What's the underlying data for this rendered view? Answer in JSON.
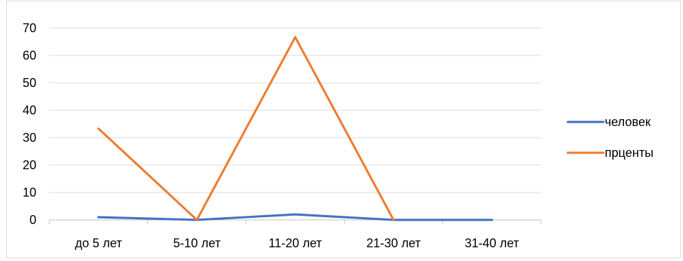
{
  "chart_data": {
    "type": "line",
    "title": "",
    "xlabel": "",
    "ylabel": "",
    "categories": [
      "до 5 лет",
      "5-10 лет",
      "11-20 лет",
      "21-30 лет",
      "31-40 лет"
    ],
    "ylim": [
      0,
      70
    ],
    "yticks": [
      0,
      10,
      20,
      30,
      40,
      50,
      60,
      70
    ],
    "grid": "horizontal",
    "legend_position": "right",
    "series": [
      {
        "name": "человек",
        "values": [
          1,
          0,
          2,
          0,
          0
        ],
        "color": "#4472c4"
      },
      {
        "name": "прценты",
        "values": [
          33.3,
          0,
          66.7,
          0,
          null
        ],
        "color": "#ed7d31"
      }
    ]
  }
}
